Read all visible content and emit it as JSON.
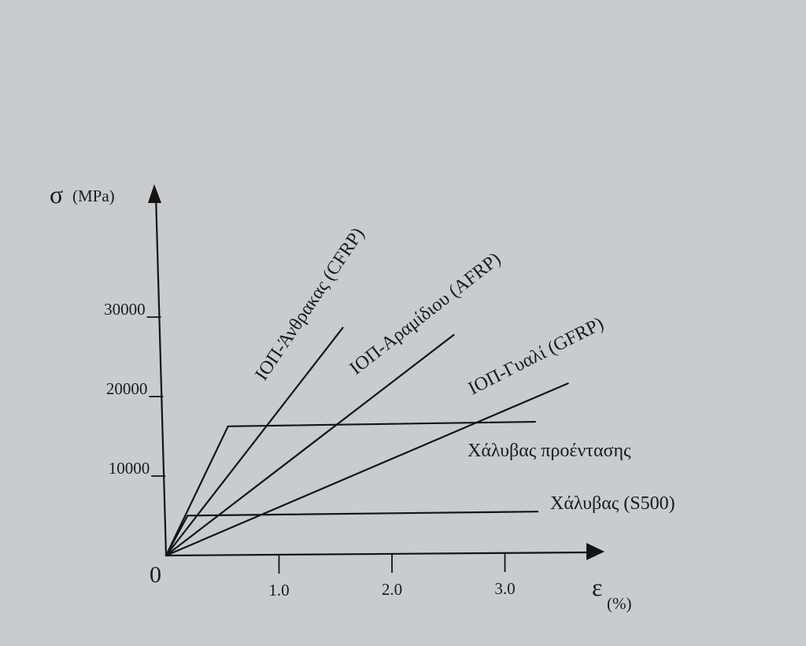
{
  "chart_data": {
    "type": "line",
    "ylabel_symbol": "σ",
    "ylabel_unit": "(MPa)",
    "xlabel_symbol": "ε",
    "xlabel_unit": "(%)",
    "origin_label": "0",
    "xlim": [
      0,
      4.0
    ],
    "ylim": [
      0,
      38000
    ],
    "x_ticks": [
      {
        "value": 1.0,
        "label": "1.0"
      },
      {
        "value": 2.0,
        "label": "2.0"
      },
      {
        "value": 3.0,
        "label": "3.0"
      }
    ],
    "y_ticks": [
      {
        "value": 10000,
        "label": "10000"
      },
      {
        "value": 20000,
        "label": "20000"
      },
      {
        "value": 30000,
        "label": "30000"
      }
    ],
    "series": [
      {
        "name": "ΙΟΠ-Άνθρακας (CFRP)",
        "points": [
          [
            0,
            0
          ],
          [
            1.62,
            28500
          ]
        ]
      },
      {
        "name": "ΙΟΠ-Αραμίδιου  (AFRP)",
        "points": [
          [
            0,
            0
          ],
          [
            2.6,
            27500
          ]
        ]
      },
      {
        "name": "ΙΟΠ-Γυαλί (GFRP)",
        "points": [
          [
            0,
            0
          ],
          [
            3.6,
            21300
          ]
        ]
      },
      {
        "name": "Χάλυβας προέντασης",
        "points": [
          [
            0,
            0
          ],
          [
            0.58,
            16200
          ],
          [
            3.3,
            16500
          ]
        ]
      },
      {
        "name": "Χάλυβας (S500)",
        "points": [
          [
            0,
            0
          ],
          [
            0.2,
            5000
          ],
          [
            3.3,
            5200
          ]
        ]
      }
    ]
  }
}
